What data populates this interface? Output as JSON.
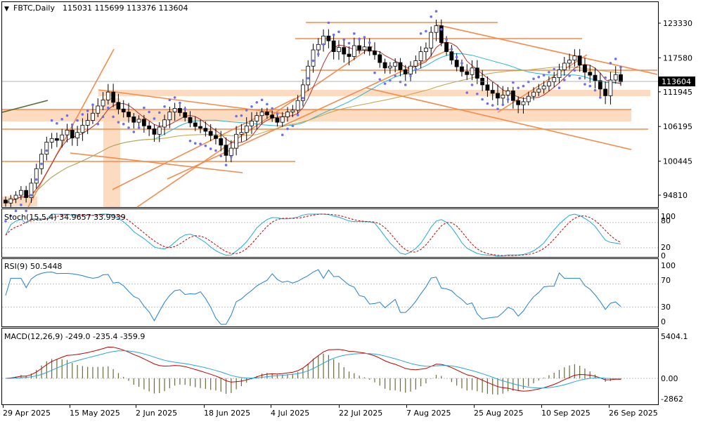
{
  "header": {
    "symbol": "FBTC,Daily",
    "ohlc": "115031 115699 113376 113604",
    "open": 115031,
    "high": 115699,
    "low": 113376,
    "close": 113604
  },
  "indicators": {
    "stoch": {
      "label": "Stoch(15,5,4) 34.9657 33.9939",
      "k": 34.9657,
      "d": 33.9939,
      "levels": [
        "100",
        "80",
        "20",
        "0"
      ]
    },
    "rsi": {
      "label": "RSI(9) 50.5448",
      "value": 50.5448,
      "levels": [
        "100",
        "70",
        "30",
        "0"
      ]
    },
    "macd": {
      "label": "MACD(12,26,9) -249.0 -235.4 -359.9",
      "levels": [
        "5404.1",
        "0.00",
        "-2862"
      ]
    }
  },
  "price_axis": {
    "ticks": [
      "123330",
      "117580",
      "111945",
      "106195",
      "100445",
      "94810"
    ]
  },
  "current_price_label": "113604",
  "date_axis": {
    "ticks": [
      "29 Apr 2025",
      "15 May 2025",
      "2 Jun 2025",
      "18 Jun 2025",
      "4 Jul 2025",
      "22 Jul 2025",
      "7 Aug 2025",
      "25 Aug 2025",
      "10 Sep 2025",
      "26 Sep 2025"
    ]
  },
  "colors": {
    "bull": "#ffffff",
    "bear": "#000000",
    "trendline": "#f58b4c",
    "zone": "#fbd5b5",
    "psar": "#6e6ef0",
    "ma_fast": "#22b8d8",
    "ma_mid": "#c8a040",
    "ma_slow": "#b03030",
    "macd_line": "#c00000",
    "macd_signal": "#22a8d8",
    "macd_hist": "#6b6b3a",
    "stoch_k": "#22a8d8",
    "stoch_d": "#c00000",
    "rsi": "#2080d0"
  },
  "chart_data": {
    "type": "candlestick",
    "closes": [
      93500,
      94200,
      94800,
      95600,
      94400,
      96800,
      99200,
      101600,
      103600,
      104200,
      103900,
      104800,
      105600,
      104300,
      105200,
      106400,
      107200,
      108400,
      109600,
      110600,
      111900,
      110200,
      109100,
      108600,
      107800,
      106900,
      107400,
      106300,
      105800,
      104900,
      106100,
      107300,
      108600,
      109200,
      108500,
      107700,
      106800,
      106200,
      105900,
      105400,
      104700,
      104200,
      103100,
      101400,
      102600,
      104900,
      105200,
      106300,
      107100,
      108000,
      108600,
      108100,
      107600,
      106900,
      107800,
      108600,
      108900,
      110500,
      113100,
      116200,
      118900,
      119800,
      121200,
      120400,
      118600,
      119300,
      118200,
      117800,
      119600,
      118900,
      119400,
      118700,
      118100,
      116800,
      115900,
      116200,
      116800,
      115600,
      114900,
      116200,
      117100,
      118600,
      119200,
      121800,
      122900,
      120100,
      118600,
      117200,
      116100,
      115300,
      114800,
      115900,
      114200,
      113100,
      112200,
      111700,
      110900,
      111400,
      112100,
      110500,
      109800,
      110300,
      111200,
      111900,
      112400,
      112900,
      113600,
      114300,
      115600,
      116700,
      117200,
      117900,
      116400,
      115200,
      114700,
      113800,
      112400,
      111300,
      113900,
      114800,
      113604
    ],
    "psar_points": "above/below price dots, see chart",
    "price_ticks": [
      123330,
      117580,
      111945,
      106195,
      100445,
      94810
    ],
    "date_ticks": [
      "29 Apr 2025",
      "15 May 2025",
      "2 Jun 2025",
      "18 Jun 2025",
      "4 Jul 2025",
      "22 Jul 2025",
      "7 Aug 2025",
      "25 Aug 2025",
      "10 Sep 2025",
      "26 Sep 2025"
    ]
  }
}
